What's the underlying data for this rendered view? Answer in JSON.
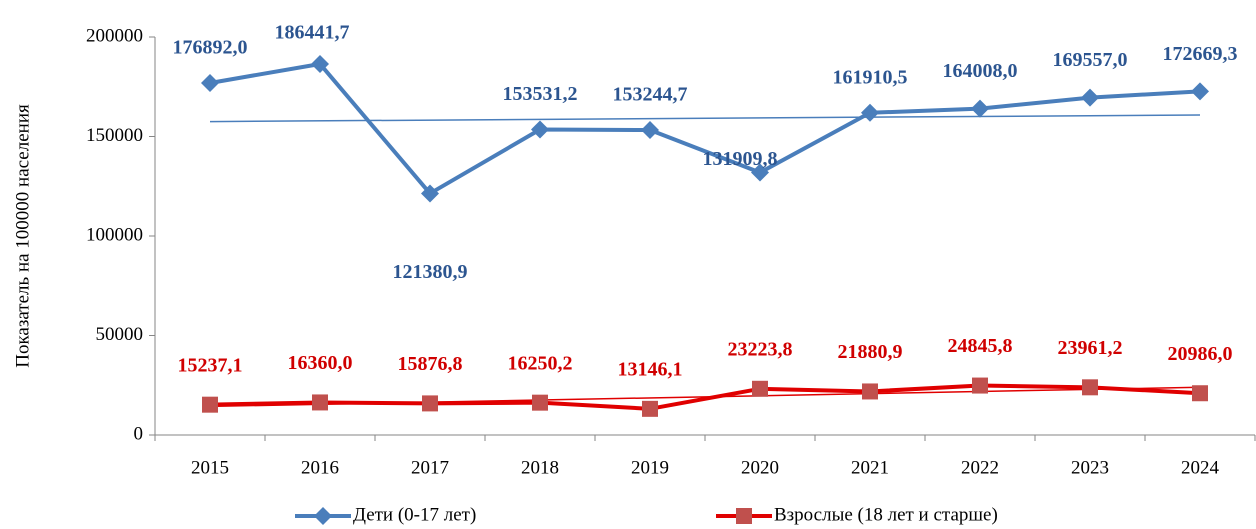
{
  "chart_data": {
    "type": "line",
    "y_label": "Показатель на 100000 населения",
    "categories": [
      "2015",
      "2016",
      "2017",
      "2018",
      "2019",
      "2020",
      "2021",
      "2022",
      "2023",
      "2024"
    ],
    "ylim": [
      0,
      200000
    ],
    "yticks": [
      0,
      50000,
      100000,
      150000,
      200000
    ],
    "grid": false,
    "legend": "bottom",
    "series": [
      {
        "name": "Дети (0-17 лет)",
        "color": "#4a7ebb",
        "label_color": "#2c5590",
        "marker": "diamond",
        "trendline": true,
        "values": [
          176892.0,
          186441.7,
          121380.9,
          153531.2,
          153244.7,
          131909.8,
          161910.5,
          164008.0,
          169557.0,
          172669.3
        ],
        "value_labels": [
          "176892,0",
          "186441,7",
          "121380,9",
          "153531,2",
          "153244,7",
          "131909,8",
          "161910,5",
          "164008,0",
          "169557,0",
          "172669,3"
        ]
      },
      {
        "name": "Взрослые (18 лет и старше)",
        "color": "#c0504d",
        "line_color": "#e00000",
        "label_color": "#d00000",
        "marker": "square",
        "trendline": true,
        "values": [
          15237.1,
          16360.0,
          15876.8,
          16250.2,
          13146.1,
          23223.8,
          21880.9,
          24845.8,
          23961.2,
          20986.0
        ],
        "value_labels": [
          "15237,1",
          "16360,0",
          "15876,8",
          "16250,2",
          "13146,1",
          "23223,8",
          "21880,9",
          "24845,8",
          "23961,2",
          "20986,0"
        ]
      }
    ]
  }
}
